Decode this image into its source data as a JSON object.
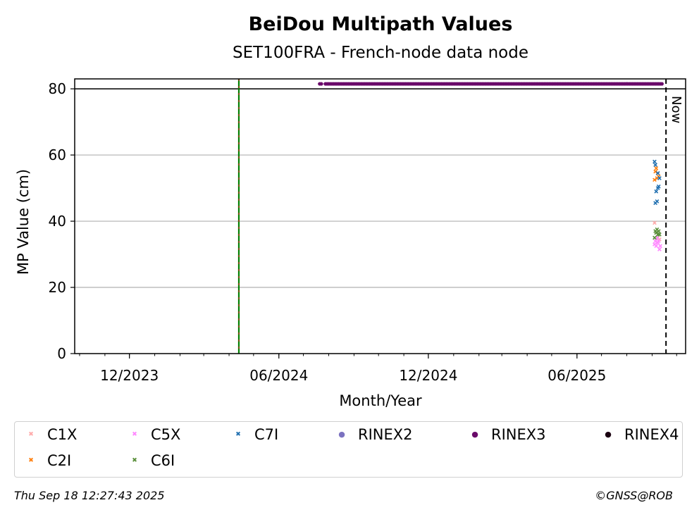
{
  "chart_data": {
    "type": "scatter",
    "title": "BeiDou Multipath Values",
    "subtitle": "SET100FRA - French-node data node",
    "xlabel": "Month/Year",
    "ylabel": "MP Value (cm)",
    "xlim": [
      "2023-09-25",
      "2025-10-12"
    ],
    "ylim": [
      0,
      83
    ],
    "yticks": [
      0,
      20,
      40,
      60,
      80
    ],
    "xticks": [
      {
        "date": "2023-12-01",
        "label": "12/2023"
      },
      {
        "date": "2024-06-01",
        "label": "06/2024"
      },
      {
        "date": "2024-12-01",
        "label": "12/2024"
      },
      {
        "date": "2025-06-01",
        "label": "06/2025"
      }
    ],
    "grid": "y",
    "reference_lines": [
      {
        "type": "hline",
        "y": 80,
        "color": "#000000"
      },
      {
        "type": "vline",
        "date": "2024-04-13",
        "color": "#008000",
        "style": "solid-with-red-dash"
      },
      {
        "type": "vline",
        "date": "2025-09-18",
        "color": "#000000",
        "style": "dashed",
        "label": "Now"
      }
    ],
    "series": [
      {
        "name": "C1X",
        "color": "#ffaaaa",
        "marker": "x",
        "x": [
          "2025-09-04",
          "2025-09-06",
          "2025-09-08",
          "2025-09-10"
        ],
        "y": [
          39.5,
          36.5,
          35.0,
          34.5
        ]
      },
      {
        "name": "C2I",
        "color": "#ff7f0e",
        "marker": "x",
        "x": [
          "2025-09-04",
          "2025-09-05",
          "2025-09-06",
          "2025-09-07",
          "2025-09-08",
          "2025-09-09"
        ],
        "y": [
          52.5,
          55.0,
          56.0,
          53.0,
          54.5,
          53.5
        ]
      },
      {
        "name": "C5X",
        "color": "#ff88ff",
        "marker": "x",
        "x": [
          "2025-09-04",
          "2025-09-05",
          "2025-09-06",
          "2025-09-07",
          "2025-09-08",
          "2025-09-09",
          "2025-09-10",
          "2025-09-11"
        ],
        "y": [
          33.0,
          34.0,
          32.5,
          35.0,
          33.5,
          34.0,
          31.5,
          32.5
        ]
      },
      {
        "name": "C6I",
        "color": "#5a8f3a",
        "marker": "x",
        "x": [
          "2025-09-04",
          "2025-09-05",
          "2025-09-06",
          "2025-09-07",
          "2025-09-08",
          "2025-09-09",
          "2025-09-10"
        ],
        "y": [
          35.0,
          37.0,
          36.5,
          37.5,
          36.0,
          37.0,
          36.0
        ]
      },
      {
        "name": "C7I",
        "color": "#1f6fb0",
        "marker": "x",
        "x": [
          "2025-09-04",
          "2025-09-05",
          "2025-09-05",
          "2025-09-06",
          "2025-09-07",
          "2025-09-08",
          "2025-09-08",
          "2025-09-09",
          "2025-09-10"
        ],
        "y": [
          58.0,
          45.5,
          57.0,
          49.0,
          46.0,
          50.0,
          54.5,
          50.5,
          53.0
        ]
      },
      {
        "name": "RINEX2",
        "color": "#7b72c0",
        "marker": "o",
        "x": [],
        "y": []
      },
      {
        "name": "RINEX3",
        "color": "#6a0a6a",
        "marker": "o",
        "y_level": 81.5,
        "x_ranges": [
          [
            "2024-07-21",
            "2024-07-23"
          ],
          [
            "2024-07-28",
            "2025-09-14"
          ]
        ]
      },
      {
        "name": "RINEX4",
        "color": "#1a0010",
        "marker": "o",
        "x": [],
        "y": []
      }
    ],
    "legend": {
      "placement": "bottom",
      "columns": 6
    }
  },
  "footer": {
    "timestamp": "Thu Sep 18 12:27:43 2025",
    "credit": "©GNSS@ROB"
  }
}
